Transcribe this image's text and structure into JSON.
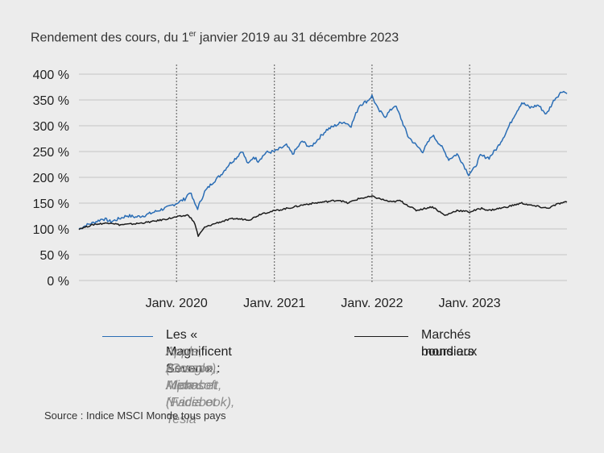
{
  "title": {
    "text_before": "Rendement des cours, du 1",
    "superscript": "er",
    "text_after": " janvier 2019 au 31 décembre 2023"
  },
  "chart_data": {
    "type": "line",
    "title": "Rendement des cours, du 1er janvier 2019 au 31 décembre 2023",
    "xlabel": "",
    "ylabel": "",
    "x_range": [
      "2019-01-01",
      "2023-12-31"
    ],
    "ylim": [
      0,
      400
    ],
    "yticks": [
      0,
      50,
      100,
      150,
      200,
      250,
      300,
      350,
      400
    ],
    "ytick_labels": [
      "0 %",
      "50 %",
      "100 %",
      "150 %",
      "200 %",
      "250 %",
      "300 %",
      "350 %",
      "400 %"
    ],
    "xticks": [
      {
        "date": "2020-01-01",
        "label": "Janv. 2020"
      },
      {
        "date": "2021-01-01",
        "label": "Janv. 2021"
      },
      {
        "date": "2022-01-01",
        "label": "Janv. 2022"
      },
      {
        "date": "2023-01-01",
        "label": "Janv. 2023"
      }
    ],
    "grid": "horizontal",
    "year_dividers": "dotted vertical",
    "legend_position": "bottom",
    "series": [
      {
        "name": "Les « Magnificent Seven » :",
        "color": "#2a6db5",
        "points": [
          [
            "2019-01-01",
            100
          ],
          [
            "2019-02-01",
            108
          ],
          [
            "2019-03-01",
            113
          ],
          [
            "2019-04-01",
            120
          ],
          [
            "2019-05-01",
            114
          ],
          [
            "2019-06-01",
            120
          ],
          [
            "2019-07-01",
            126
          ],
          [
            "2019-08-01",
            123
          ],
          [
            "2019-09-01",
            126
          ],
          [
            "2019-10-01",
            131
          ],
          [
            "2019-11-01",
            137
          ],
          [
            "2019-12-01",
            142
          ],
          [
            "2020-01-01",
            150
          ],
          [
            "2020-02-01",
            158
          ],
          [
            "2020-02-20",
            172
          ],
          [
            "2020-03-10",
            148
          ],
          [
            "2020-03-20",
            140
          ],
          [
            "2020-04-15",
            172
          ],
          [
            "2020-05-15",
            190
          ],
          [
            "2020-06-15",
            205
          ],
          [
            "2020-07-15",
            225
          ],
          [
            "2020-08-15",
            240
          ],
          [
            "2020-09-01",
            252
          ],
          [
            "2020-09-25",
            225
          ],
          [
            "2020-10-15",
            240
          ],
          [
            "2020-11-01",
            232
          ],
          [
            "2020-12-01",
            248
          ],
          [
            "2021-01-01",
            250
          ],
          [
            "2021-02-15",
            262
          ],
          [
            "2021-03-10",
            245
          ],
          [
            "2021-04-15",
            270
          ],
          [
            "2021-05-15",
            258
          ],
          [
            "2021-06-15",
            275
          ],
          [
            "2021-07-15",
            292
          ],
          [
            "2021-08-15",
            300
          ],
          [
            "2021-09-15",
            308
          ],
          [
            "2021-10-15",
            300
          ],
          [
            "2021-11-15",
            340
          ],
          [
            "2021-12-15",
            348
          ],
          [
            "2022-01-01",
            358
          ],
          [
            "2022-01-25",
            330
          ],
          [
            "2022-02-20",
            318
          ],
          [
            "2022-03-28",
            340
          ],
          [
            "2022-04-15",
            320
          ],
          [
            "2022-05-15",
            280
          ],
          [
            "2022-06-15",
            262
          ],
          [
            "2022-07-10",
            250
          ],
          [
            "2022-08-15",
            282
          ],
          [
            "2022-09-15",
            262
          ],
          [
            "2022-10-15",
            235
          ],
          [
            "2022-11-15",
            245
          ],
          [
            "2022-12-01",
            232
          ],
          [
            "2022-12-28",
            206
          ],
          [
            "2023-01-20",
            218
          ],
          [
            "2023-02-10",
            242
          ],
          [
            "2023-03-15",
            238
          ],
          [
            "2023-04-15",
            258
          ],
          [
            "2023-05-15",
            285
          ],
          [
            "2023-06-15",
            318
          ],
          [
            "2023-07-15",
            345
          ],
          [
            "2023-08-15",
            335
          ],
          [
            "2023-09-15",
            340
          ],
          [
            "2023-10-15",
            322
          ],
          [
            "2023-11-15",
            352
          ],
          [
            "2023-12-15",
            368
          ],
          [
            "2023-12-31",
            362
          ]
        ]
      },
      {
        "name": "Marchés boursiers mondiaux",
        "color": "#1c1c1c",
        "points": [
          [
            "2019-01-01",
            100
          ],
          [
            "2019-03-01",
            109
          ],
          [
            "2019-05-01",
            112
          ],
          [
            "2019-06-01",
            108
          ],
          [
            "2019-08-01",
            110
          ],
          [
            "2019-10-01",
            114
          ],
          [
            "2019-12-01",
            120
          ],
          [
            "2020-01-01",
            123
          ],
          [
            "2020-02-15",
            127
          ],
          [
            "2020-03-10",
            110
          ],
          [
            "2020-03-22",
            86
          ],
          [
            "2020-04-15",
            103
          ],
          [
            "2020-06-01",
            112
          ],
          [
            "2020-08-01",
            120
          ],
          [
            "2020-10-01",
            118
          ],
          [
            "2020-11-15",
            130
          ],
          [
            "2021-01-01",
            135
          ],
          [
            "2021-03-01",
            141
          ],
          [
            "2021-05-01",
            148
          ],
          [
            "2021-07-01",
            152
          ],
          [
            "2021-09-01",
            156
          ],
          [
            "2021-10-01",
            150
          ],
          [
            "2021-11-15",
            159
          ],
          [
            "2022-01-01",
            163
          ],
          [
            "2022-02-15",
            156
          ],
          [
            "2022-03-15",
            152
          ],
          [
            "2022-04-15",
            155
          ],
          [
            "2022-06-15",
            136
          ],
          [
            "2022-08-15",
            143
          ],
          [
            "2022-10-01",
            126
          ],
          [
            "2022-11-15",
            136
          ],
          [
            "2023-01-01",
            133
          ],
          [
            "2023-02-15",
            140
          ],
          [
            "2023-03-15",
            136
          ],
          [
            "2023-05-15",
            142
          ],
          [
            "2023-07-15",
            150
          ],
          [
            "2023-08-15",
            146
          ],
          [
            "2023-10-20",
            140
          ],
          [
            "2023-11-30",
            149
          ],
          [
            "2023-12-31",
            152
          ]
        ]
      }
    ]
  },
  "legend": {
    "items": [
      {
        "label": "Les « Magnificent Seven » :",
        "sublabel_lines": [
          "Apple, Amazon, Alphabet",
          "(Google), Meta (Facebook),",
          "Microsoft, Nvidia et Tesla"
        ],
        "color": "#2a6db5"
      },
      {
        "label_lines": [
          "Marchés boursiers",
          "mondiaux"
        ],
        "color": "#1c1c1c"
      }
    ]
  },
  "source": "Source : Indice MSCI Monde tous pays"
}
